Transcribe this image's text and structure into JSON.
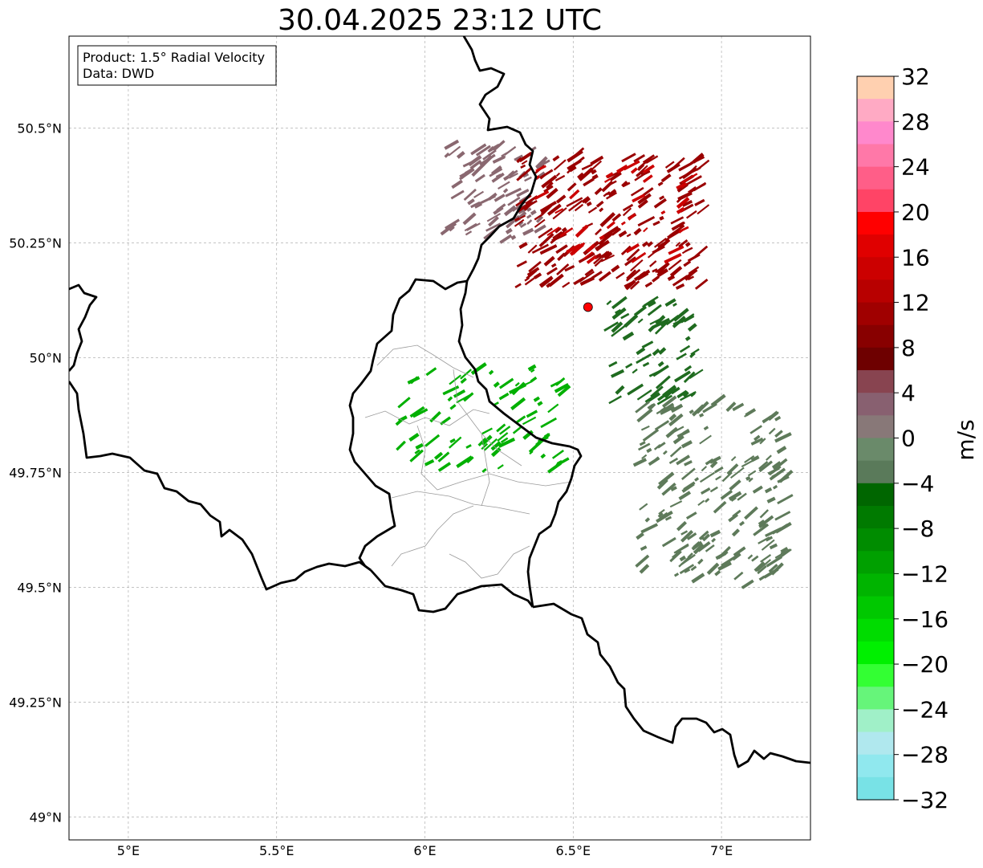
{
  "title": "30.04.2025 23:12 UTC",
  "info_box": {
    "line1": "Product: 1.5° Radial Velocity",
    "line2": "Data: DWD"
  },
  "map": {
    "lon_range": [
      4.8,
      7.3
    ],
    "lat_range": [
      48.95,
      50.7
    ],
    "lon_ticks": [
      {
        "value": 5.0,
        "label": "5°E"
      },
      {
        "value": 5.5,
        "label": "5.5°E"
      },
      {
        "value": 6.0,
        "label": "6°E"
      },
      {
        "value": 6.5,
        "label": "6.5°E"
      },
      {
        "value": 7.0,
        "label": "7°E"
      }
    ],
    "lat_ticks": [
      {
        "value": 49.0,
        "label": "49°N"
      },
      {
        "value": 49.25,
        "label": "49.25°N"
      },
      {
        "value": 49.5,
        "label": "49.5°N"
      },
      {
        "value": 49.75,
        "label": "49.75°N"
      },
      {
        "value": 50.0,
        "label": "50°N"
      },
      {
        "value": 50.25,
        "label": "50.25°N"
      },
      {
        "value": 50.5,
        "label": "50.5°N"
      }
    ],
    "radar_site": {
      "lon": 6.55,
      "lat": 50.11,
      "color": "#ff0000"
    },
    "border_color": "#000000",
    "region_border_color": "#999999",
    "grid": true
  },
  "colorbar": {
    "label": "m/s",
    "min": -32,
    "max": 32,
    "tick_labels": [
      "32",
      "28",
      "24",
      "20",
      "16",
      "12",
      "8",
      "4",
      "0",
      "−4",
      "−8",
      "−12",
      "−16",
      "−20",
      "−24",
      "−28",
      "−32"
    ],
    "colors_top_to_bottom": [
      "#ffd0b0",
      "#ffaac4",
      "#ff88cc",
      "#ff78a8",
      "#ff5e88",
      "#ff4466",
      "#ff0000",
      "#e00000",
      "#cc0000",
      "#b80000",
      "#a00000",
      "#880000",
      "#6e0000",
      "#884450",
      "#886070",
      "#887878",
      "#6a8a6a",
      "#5a7a5a",
      "#006600",
      "#007a00",
      "#008c00",
      "#00a000",
      "#00b400",
      "#00c800",
      "#00dc00",
      "#00f000",
      "#33ff33",
      "#66f57a",
      "#a0f0c8",
      "#b0e8ee",
      "#90e8ee",
      "#78e2e6"
    ]
  },
  "velocity_clusters": [
    {
      "name": "inbound-gray-nw",
      "color": "#8a6870",
      "lon_min": 6.05,
      "lon_max": 6.38,
      "lat_min": 50.25,
      "lat_max": 50.46,
      "count": 90
    },
    {
      "name": "outbound-dark-red",
      "color": "#9a0000",
      "lon_min": 6.3,
      "lon_max": 6.92,
      "lat_min": 50.15,
      "lat_max": 50.44,
      "count": 230
    },
    {
      "name": "outbound-red-edge",
      "color": "#cc0000",
      "lon_min": 6.35,
      "lon_max": 6.88,
      "lat_min": 50.2,
      "lat_max": 50.42,
      "count": 40
    },
    {
      "name": "green-luxembourg",
      "color": "#00b000",
      "lon_min": 5.9,
      "lon_max": 6.45,
      "lat_min": 49.75,
      "lat_max": 49.98,
      "count": 85
    },
    {
      "name": "dark-green-east",
      "color": "#1f6b1f",
      "lon_min": 6.6,
      "lon_max": 6.9,
      "lat_min": 49.9,
      "lat_max": 50.12,
      "count": 70
    },
    {
      "name": "olive-green-se",
      "color": "#5e7a5a",
      "lon_min": 6.7,
      "lon_max": 7.2,
      "lat_min": 49.5,
      "lat_max": 49.9,
      "count": 200
    }
  ]
}
